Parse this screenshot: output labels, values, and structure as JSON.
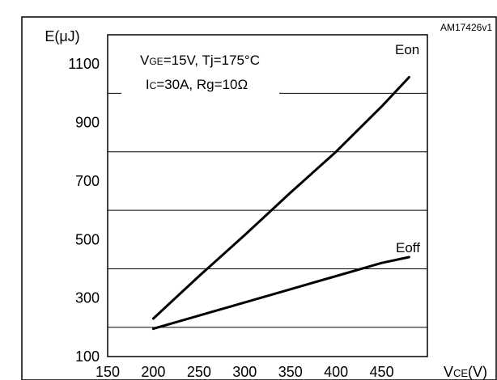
{
  "figure_id": "AM17426v1",
  "chart_data": {
    "type": "line",
    "title": "",
    "xlabel": {
      "main": "V",
      "sub": "CE",
      "unit": "(V)"
    },
    "ylabel": "E(μJ)",
    "xlim": [
      150,
      500
    ],
    "ylim": [
      100,
      1200
    ],
    "x_ticks": [
      150,
      200,
      250,
      300,
      350,
      400,
      450
    ],
    "y_ticks": [
      100,
      300,
      500,
      700,
      900,
      1100
    ],
    "grid": {
      "horizontal": [
        200,
        400,
        600,
        800,
        1000
      ],
      "vertical": false
    },
    "conditions": {
      "line1": {
        "v": "V",
        "sub": "GE",
        "rest": "=15V, Tj=175°C"
      },
      "line2": {
        "v": "I",
        "sub": "C",
        "rest": "=30A,  Rg=10Ω"
      }
    },
    "series": [
      {
        "name": "Eon",
        "x": [
          200,
          250,
          300,
          350,
          400,
          450,
          480
        ],
        "y": [
          230,
          375,
          515,
          660,
          800,
          955,
          1055
        ]
      },
      {
        "name": "Eoff",
        "x": [
          200,
          250,
          300,
          350,
          400,
          450,
          480
        ],
        "y": [
          195,
          240,
          285,
          330,
          375,
          420,
          440
        ]
      }
    ]
  }
}
